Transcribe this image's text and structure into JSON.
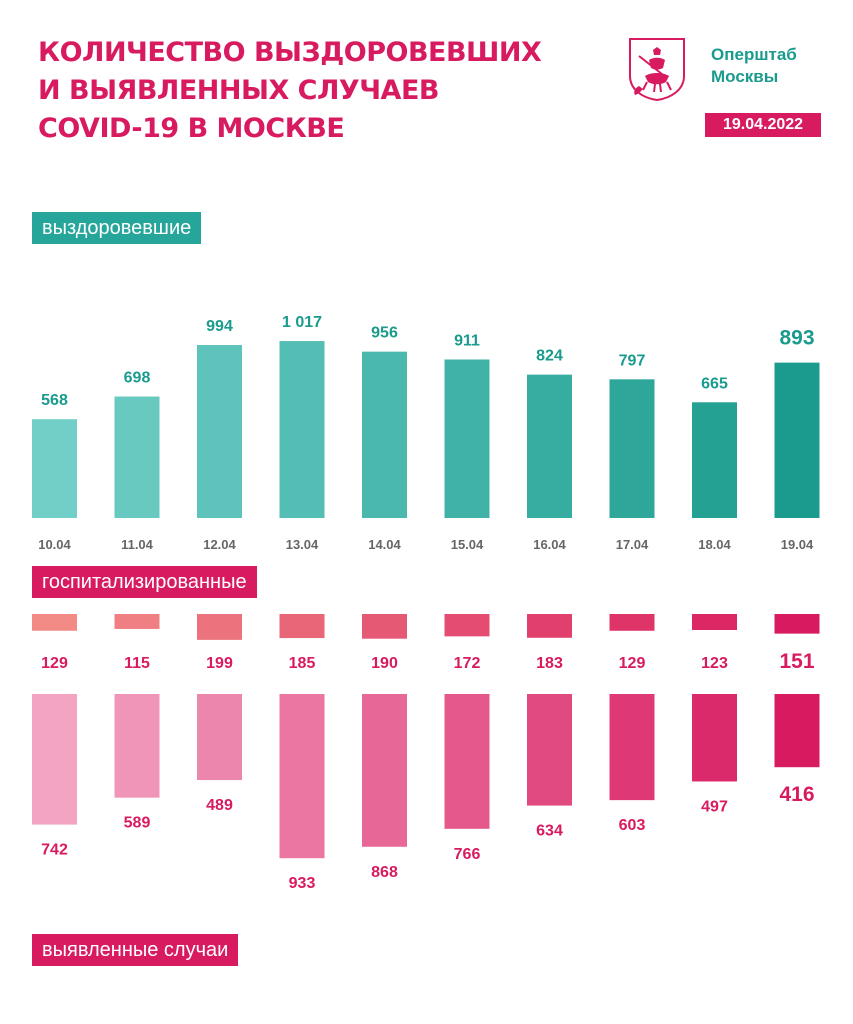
{
  "header": {
    "title_lines": [
      "Количество выздоровевших",
      "и выявленных случаев",
      "COVID-19 в Москве"
    ],
    "org_lines": [
      "Оперштаб",
      "Москвы"
    ],
    "date": "19.04.2022",
    "logo_icon": "moscow-coat-of-arms-icon"
  },
  "labels": {
    "recovered": "выздоровевшие",
    "hospitalized": "госпитализированные",
    "new_cases": "выявленные случаи"
  },
  "colors": {
    "brand_pink": "#d81b60",
    "brand_teal": "#26a69a",
    "axis_text": "#666666"
  },
  "chart_data": {
    "type": "bar",
    "categories": [
      "10.04",
      "11.04",
      "12.04",
      "13.04",
      "14.04",
      "15.04",
      "16.04",
      "17.04",
      "18.04",
      "19.04"
    ],
    "series": [
      {
        "name": "выздоровевшие",
        "values": [
          568,
          698,
          994,
          1017,
          956,
          911,
          824,
          797,
          665,
          893
        ],
        "labels": [
          "568",
          "698",
          "994",
          "1 017",
          "956",
          "911",
          "824",
          "797",
          "665",
          "893"
        ]
      },
      {
        "name": "госпитализированные",
        "values": [
          129,
          115,
          199,
          185,
          190,
          172,
          183,
          129,
          123,
          151
        ]
      },
      {
        "name": "выявленные случаи",
        "values": [
          742,
          589,
          489,
          933,
          868,
          766,
          634,
          603,
          497,
          416
        ]
      }
    ]
  }
}
